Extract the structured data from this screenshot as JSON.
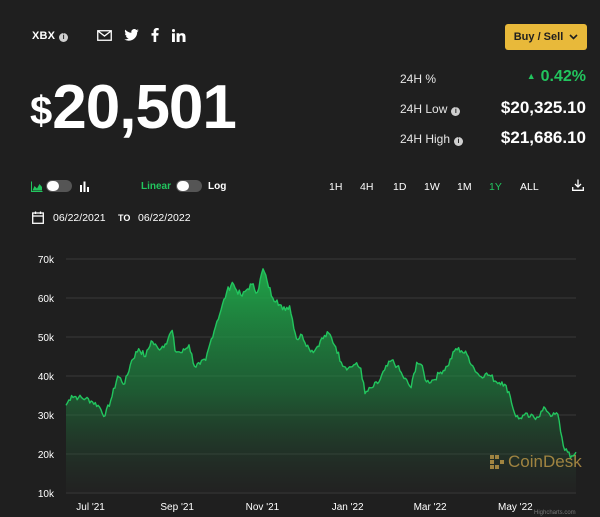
{
  "asset": {
    "ticker": "XBX",
    "info_icon": "i"
  },
  "share_icons": [
    "email-icon",
    "twitter-icon",
    "facebook-icon",
    "linkedin-icon"
  ],
  "buy_sell": {
    "label": "Buy / Sell",
    "chevron": "⌄"
  },
  "price": {
    "currency": "$",
    "value": "20,501"
  },
  "stats": [
    {
      "label": "24H %",
      "value": "0.42%",
      "positive": true
    },
    {
      "label": "24H Low",
      "value": "$20,325.10"
    },
    {
      "label": "24H High",
      "value": "$21,686.10"
    }
  ],
  "controls": {
    "scale_linear": "Linear",
    "scale_log": "Log",
    "ranges": [
      "1H",
      "4H",
      "1D",
      "1W",
      "1M",
      "1Y",
      "ALL"
    ],
    "active_range": "1Y"
  },
  "date_range": {
    "from": "06/22/2021",
    "to_label": "TO",
    "to": "06/22/2022"
  },
  "watermark": {
    "text": "CoinDesk",
    "credit": "Highcharts.com"
  },
  "colors": {
    "accent": "#22c55e",
    "button": "#e8b93a",
    "background": "#1f1f1f"
  },
  "chart_data": {
    "type": "area",
    "x_tick_labels": [
      "Jul '21",
      "Sep '21",
      "Nov '21",
      "Jan '22",
      "Mar '22",
      "May '22"
    ],
    "y_tick_labels": [
      "10k",
      "20k",
      "30k",
      "40k",
      "50k",
      "60k",
      "70k"
    ],
    "ylim": [
      10000,
      70000
    ],
    "xlim": [
      "2021-06-22",
      "2022-06-22"
    ],
    "grid": true,
    "series": [
      {
        "points": [
          [
            "2021-06-22",
            32500
          ],
          [
            "2021-06-26",
            35000
          ],
          [
            "2021-07-01",
            34500
          ],
          [
            "2021-07-06",
            34200
          ],
          [
            "2021-07-10",
            33600
          ],
          [
            "2021-07-15",
            32500
          ],
          [
            "2021-07-20",
            29800
          ],
          [
            "2021-07-25",
            34800
          ],
          [
            "2021-07-29",
            40000
          ],
          [
            "2021-08-03",
            38000
          ],
          [
            "2021-08-08",
            44000
          ],
          [
            "2021-08-13",
            47000
          ],
          [
            "2021-08-18",
            45000
          ],
          [
            "2021-08-22",
            49000
          ],
          [
            "2021-08-27",
            47000
          ],
          [
            "2021-09-01",
            48200
          ],
          [
            "2021-09-06",
            51700
          ],
          [
            "2021-09-08",
            46500
          ],
          [
            "2021-09-13",
            46000
          ],
          [
            "2021-09-18",
            48000
          ],
          [
            "2021-09-22",
            42500
          ],
          [
            "2021-09-26",
            43000
          ],
          [
            "2021-09-30",
            44000
          ],
          [
            "2021-10-04",
            49500
          ],
          [
            "2021-10-08",
            54000
          ],
          [
            "2021-10-11",
            57000
          ],
          [
            "2021-10-15",
            61500
          ],
          [
            "2021-10-19",
            64000
          ],
          [
            "2021-10-22",
            62000
          ],
          [
            "2021-10-26",
            60500
          ],
          [
            "2021-10-29",
            62000
          ],
          [
            "2021-11-02",
            63500
          ],
          [
            "2021-11-06",
            61500
          ],
          [
            "2021-11-10",
            67500
          ],
          [
            "2021-11-13",
            64200
          ],
          [
            "2021-11-17",
            60000
          ],
          [
            "2021-11-20",
            59500
          ],
          [
            "2021-11-24",
            57000
          ],
          [
            "2021-11-29",
            58000
          ],
          [
            "2021-12-04",
            49500
          ],
          [
            "2021-12-08",
            50500
          ],
          [
            "2021-12-13",
            47000
          ],
          [
            "2021-12-17",
            46500
          ],
          [
            "2021-12-21",
            49000
          ],
          [
            "2021-12-27",
            51000
          ],
          [
            "2022-01-01",
            47500
          ],
          [
            "2022-01-05",
            43500
          ],
          [
            "2022-01-10",
            42000
          ],
          [
            "2022-01-15",
            43000
          ],
          [
            "2022-01-19",
            42000
          ],
          [
            "2022-01-22",
            35500
          ],
          [
            "2022-01-27",
            37000
          ],
          [
            "2022-02-01",
            38500
          ],
          [
            "2022-02-05",
            41500
          ],
          [
            "2022-02-10",
            44000
          ],
          [
            "2022-02-14",
            42500
          ],
          [
            "2022-02-18",
            40000
          ],
          [
            "2022-02-24",
            37000
          ],
          [
            "2022-02-28",
            43500
          ],
          [
            "2022-03-03",
            43000
          ],
          [
            "2022-03-07",
            38500
          ],
          [
            "2022-03-12",
            39000
          ],
          [
            "2022-03-17",
            41000
          ],
          [
            "2022-03-22",
            42500
          ],
          [
            "2022-03-28",
            47000
          ],
          [
            "2022-04-01",
            46500
          ],
          [
            "2022-04-05",
            45500
          ],
          [
            "2022-04-10",
            42000
          ],
          [
            "2022-04-14",
            40000
          ],
          [
            "2022-04-18",
            40500
          ],
          [
            "2022-04-22",
            40000
          ],
          [
            "2022-04-26",
            38500
          ],
          [
            "2022-04-30",
            38500
          ],
          [
            "2022-05-05",
            36000
          ],
          [
            "2022-05-09",
            30500
          ],
          [
            "2022-05-12",
            29000
          ],
          [
            "2022-05-16",
            30000
          ],
          [
            "2022-05-20",
            29500
          ],
          [
            "2022-05-25",
            29500
          ],
          [
            "2022-05-31",
            31700
          ],
          [
            "2022-06-05",
            29800
          ],
          [
            "2022-06-09",
            30200
          ],
          [
            "2022-06-13",
            22000
          ],
          [
            "2022-06-16",
            20500
          ],
          [
            "2022-06-18",
            19000
          ],
          [
            "2022-06-22",
            20500
          ]
        ]
      }
    ]
  }
}
